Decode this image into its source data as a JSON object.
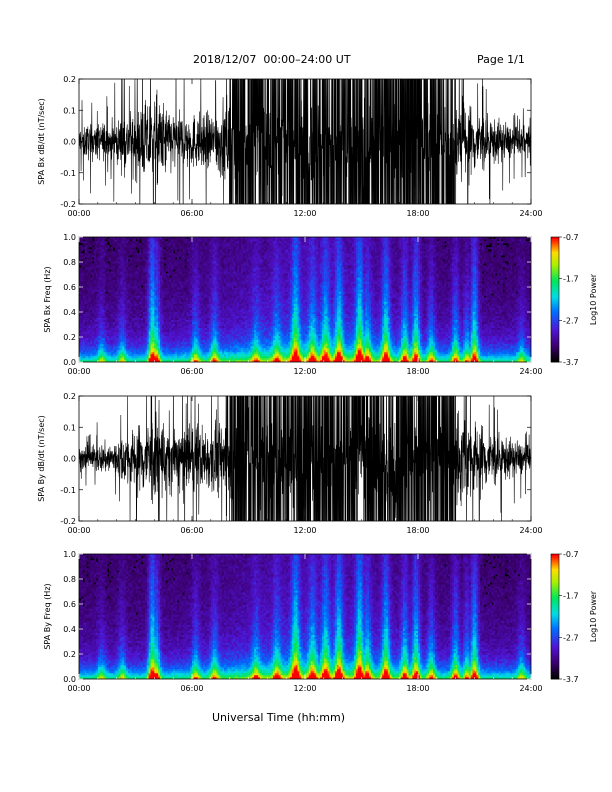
{
  "header": {
    "title": "2018/12/07  00:00–24:00 UT",
    "page": "Page 1/1"
  },
  "chart_data": [
    {
      "type": "line",
      "panel": "bx-timeseries",
      "ylabel": "SPA Bx dB/dt (nT/sec)",
      "xlim": [
        "00:00",
        "24:00"
      ],
      "ylim": [
        -0.2,
        0.2
      ],
      "x_ticks": [
        "00:00",
        "06:00",
        "12:00",
        "18:00",
        "24:00"
      ],
      "y_ticks": [
        "0.2",
        "0.1",
        "0.0",
        "-0.1",
        "-0.2"
      ],
      "envelope_hours": [
        0,
        1,
        2,
        3,
        4,
        5,
        6,
        7,
        8,
        9,
        10,
        11,
        12,
        13,
        14,
        15,
        16,
        17,
        18,
        19,
        20,
        21,
        22,
        23,
        24
      ],
      "envelope_amplitude": [
        0.07,
        0.08,
        0.09,
        0.14,
        0.2,
        0.13,
        0.12,
        0.12,
        0.2,
        0.2,
        0.2,
        0.2,
        0.2,
        0.2,
        0.2,
        0.2,
        0.2,
        0.2,
        0.2,
        0.2,
        0.2,
        0.15,
        0.1,
        0.07,
        0.06
      ]
    },
    {
      "type": "heatmap",
      "panel": "bx-spectrogram",
      "ylabel": "SPA Bx Freq (Hz)",
      "xlim": [
        "00:00",
        "24:00"
      ],
      "ylim": [
        0.0,
        1.0
      ],
      "x_ticks": [
        "00:00",
        "06:00",
        "12:00",
        "18:00",
        "24:00"
      ],
      "y_ticks": [
        "1.0",
        "0.8",
        "0.6",
        "0.4",
        "0.2",
        "0.0"
      ],
      "colorbar": {
        "label": "Log10 Power",
        "ticks": [
          "-0.7",
          "-1.7",
          "-2.7",
          "-3.7"
        ],
        "range": [
          -3.7,
          -0.7
        ]
      },
      "burst_hours": [
        1.2,
        2.3,
        3.9,
        4.1,
        6.2,
        7.2,
        9.4,
        10.5,
        11.5,
        12.4,
        13.1,
        13.8,
        14.9,
        15.3,
        16.3,
        17.3,
        17.9,
        18.7,
        20.0,
        20.6,
        21.0,
        23.5
      ],
      "burst_strength": [
        0.3,
        0.35,
        0.9,
        0.7,
        0.4,
        0.45,
        0.35,
        0.4,
        0.75,
        0.5,
        0.6,
        0.7,
        0.8,
        0.5,
        0.75,
        0.6,
        0.75,
        0.45,
        0.55,
        0.45,
        0.8,
        0.3
      ]
    },
    {
      "type": "line",
      "panel": "by-timeseries",
      "ylabel": "SPA By dB/dt (nT/sec)",
      "xlim": [
        "00:00",
        "24:00"
      ],
      "ylim": [
        -0.2,
        0.2
      ],
      "x_ticks": [
        "00:00",
        "06:00",
        "12:00",
        "18:00",
        "24:00"
      ],
      "y_ticks": [
        "0.2",
        "0.1",
        "0.0",
        "-0.1",
        "-0.2"
      ],
      "envelope_hours": [
        0,
        1,
        2,
        3,
        4,
        5,
        6,
        7,
        8,
        9,
        10,
        11,
        12,
        13,
        14,
        15,
        16,
        17,
        18,
        19,
        20,
        21,
        22,
        23,
        24
      ],
      "envelope_amplitude": [
        0.05,
        0.06,
        0.08,
        0.14,
        0.2,
        0.15,
        0.14,
        0.14,
        0.2,
        0.2,
        0.2,
        0.2,
        0.2,
        0.2,
        0.2,
        0.2,
        0.2,
        0.2,
        0.2,
        0.2,
        0.2,
        0.17,
        0.12,
        0.08,
        0.06
      ]
    },
    {
      "type": "heatmap",
      "panel": "by-spectrogram",
      "ylabel": "SPA By Freq (Hz)",
      "xlim": [
        "00:00",
        "24:00"
      ],
      "ylim": [
        0.0,
        1.0
      ],
      "x_ticks": [
        "00:00",
        "06:00",
        "12:00",
        "18:00",
        "24:00"
      ],
      "y_ticks": [
        "1.0",
        "0.8",
        "0.6",
        "0.4",
        "0.2",
        "0.0"
      ],
      "colorbar": {
        "label": "Log10 Power",
        "ticks": [
          "-0.7",
          "-1.7",
          "-2.7",
          "-3.7"
        ],
        "range": [
          -3.7,
          -0.7
        ]
      },
      "burst_hours": [
        1.2,
        2.3,
        3.9,
        4.1,
        6.2,
        7.2,
        9.4,
        10.5,
        11.5,
        12.4,
        13.1,
        13.8,
        14.9,
        15.3,
        16.3,
        17.3,
        17.9,
        18.7,
        20.0,
        20.6,
        21.0,
        23.5
      ],
      "burst_strength": [
        0.3,
        0.35,
        0.9,
        0.7,
        0.4,
        0.45,
        0.4,
        0.45,
        0.8,
        0.55,
        0.65,
        0.75,
        0.85,
        0.55,
        0.75,
        0.6,
        0.75,
        0.5,
        0.6,
        0.5,
        0.8,
        0.35
      ]
    }
  ],
  "xlabel": "Universal Time (hh:mm)"
}
